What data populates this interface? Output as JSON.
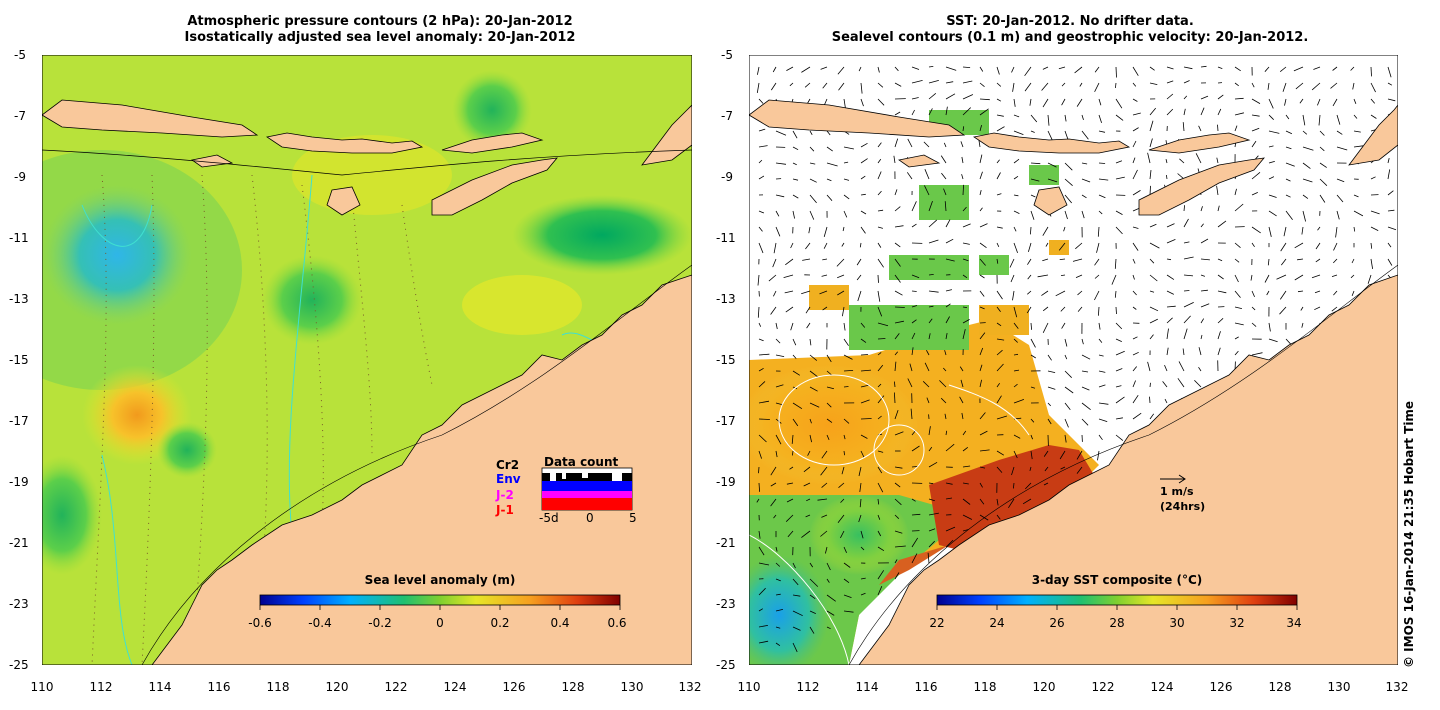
{
  "left_panel": {
    "title_line1": "Atmospheric pressure contours (2 hPa): 20-Jan-2012",
    "title_line2": "Isostatically adjusted sea level anomaly: 20-Jan-2012",
    "colorbar_label": "Sea level anomaly (m)",
    "colorbar_ticks": [
      "-0.6",
      "-0.4",
      "-0.2",
      "0",
      "0.2",
      "0.4",
      "0.6"
    ],
    "data_count": {
      "title": "Data count",
      "legend": [
        {
          "label": "Cr2",
          "color": "#000000"
        },
        {
          "label": "Env",
          "color": "#0000ff"
        },
        {
          "label": "J-2",
          "color": "#ff00ff"
        },
        {
          "label": "J-1",
          "color": "#ff0000"
        }
      ],
      "axis_ticks": [
        "-5d",
        "0",
        "5"
      ]
    }
  },
  "right_panel": {
    "title_line1": "SST: 20-Jan-2012. No drifter data.",
    "title_line2": "Sealevel contours (0.1 m) and geostrophic velocity: 20-Jan-2012.",
    "colorbar_label": "3-day SST composite (°C)",
    "colorbar_ticks": [
      "22",
      "24",
      "26",
      "28",
      "30",
      "32",
      "34"
    ],
    "velocity_scale": {
      "line1": "1 m/s",
      "line2": "(24hrs)"
    }
  },
  "axes": {
    "y_ticks": [
      "-5",
      "-7",
      "-9",
      "-11",
      "-13",
      "-15",
      "-17",
      "-19",
      "-21",
      "-23",
      "-25"
    ],
    "x_ticks": [
      "110",
      "112",
      "114",
      "116",
      "118",
      "120",
      "122",
      "124",
      "126",
      "128",
      "130",
      "132"
    ]
  },
  "credit": "© IMOS 16-Jan-2014 21:35 Hobart Time",
  "colors": {
    "land": "#f9c89b",
    "contour": "#40e0d0"
  }
}
